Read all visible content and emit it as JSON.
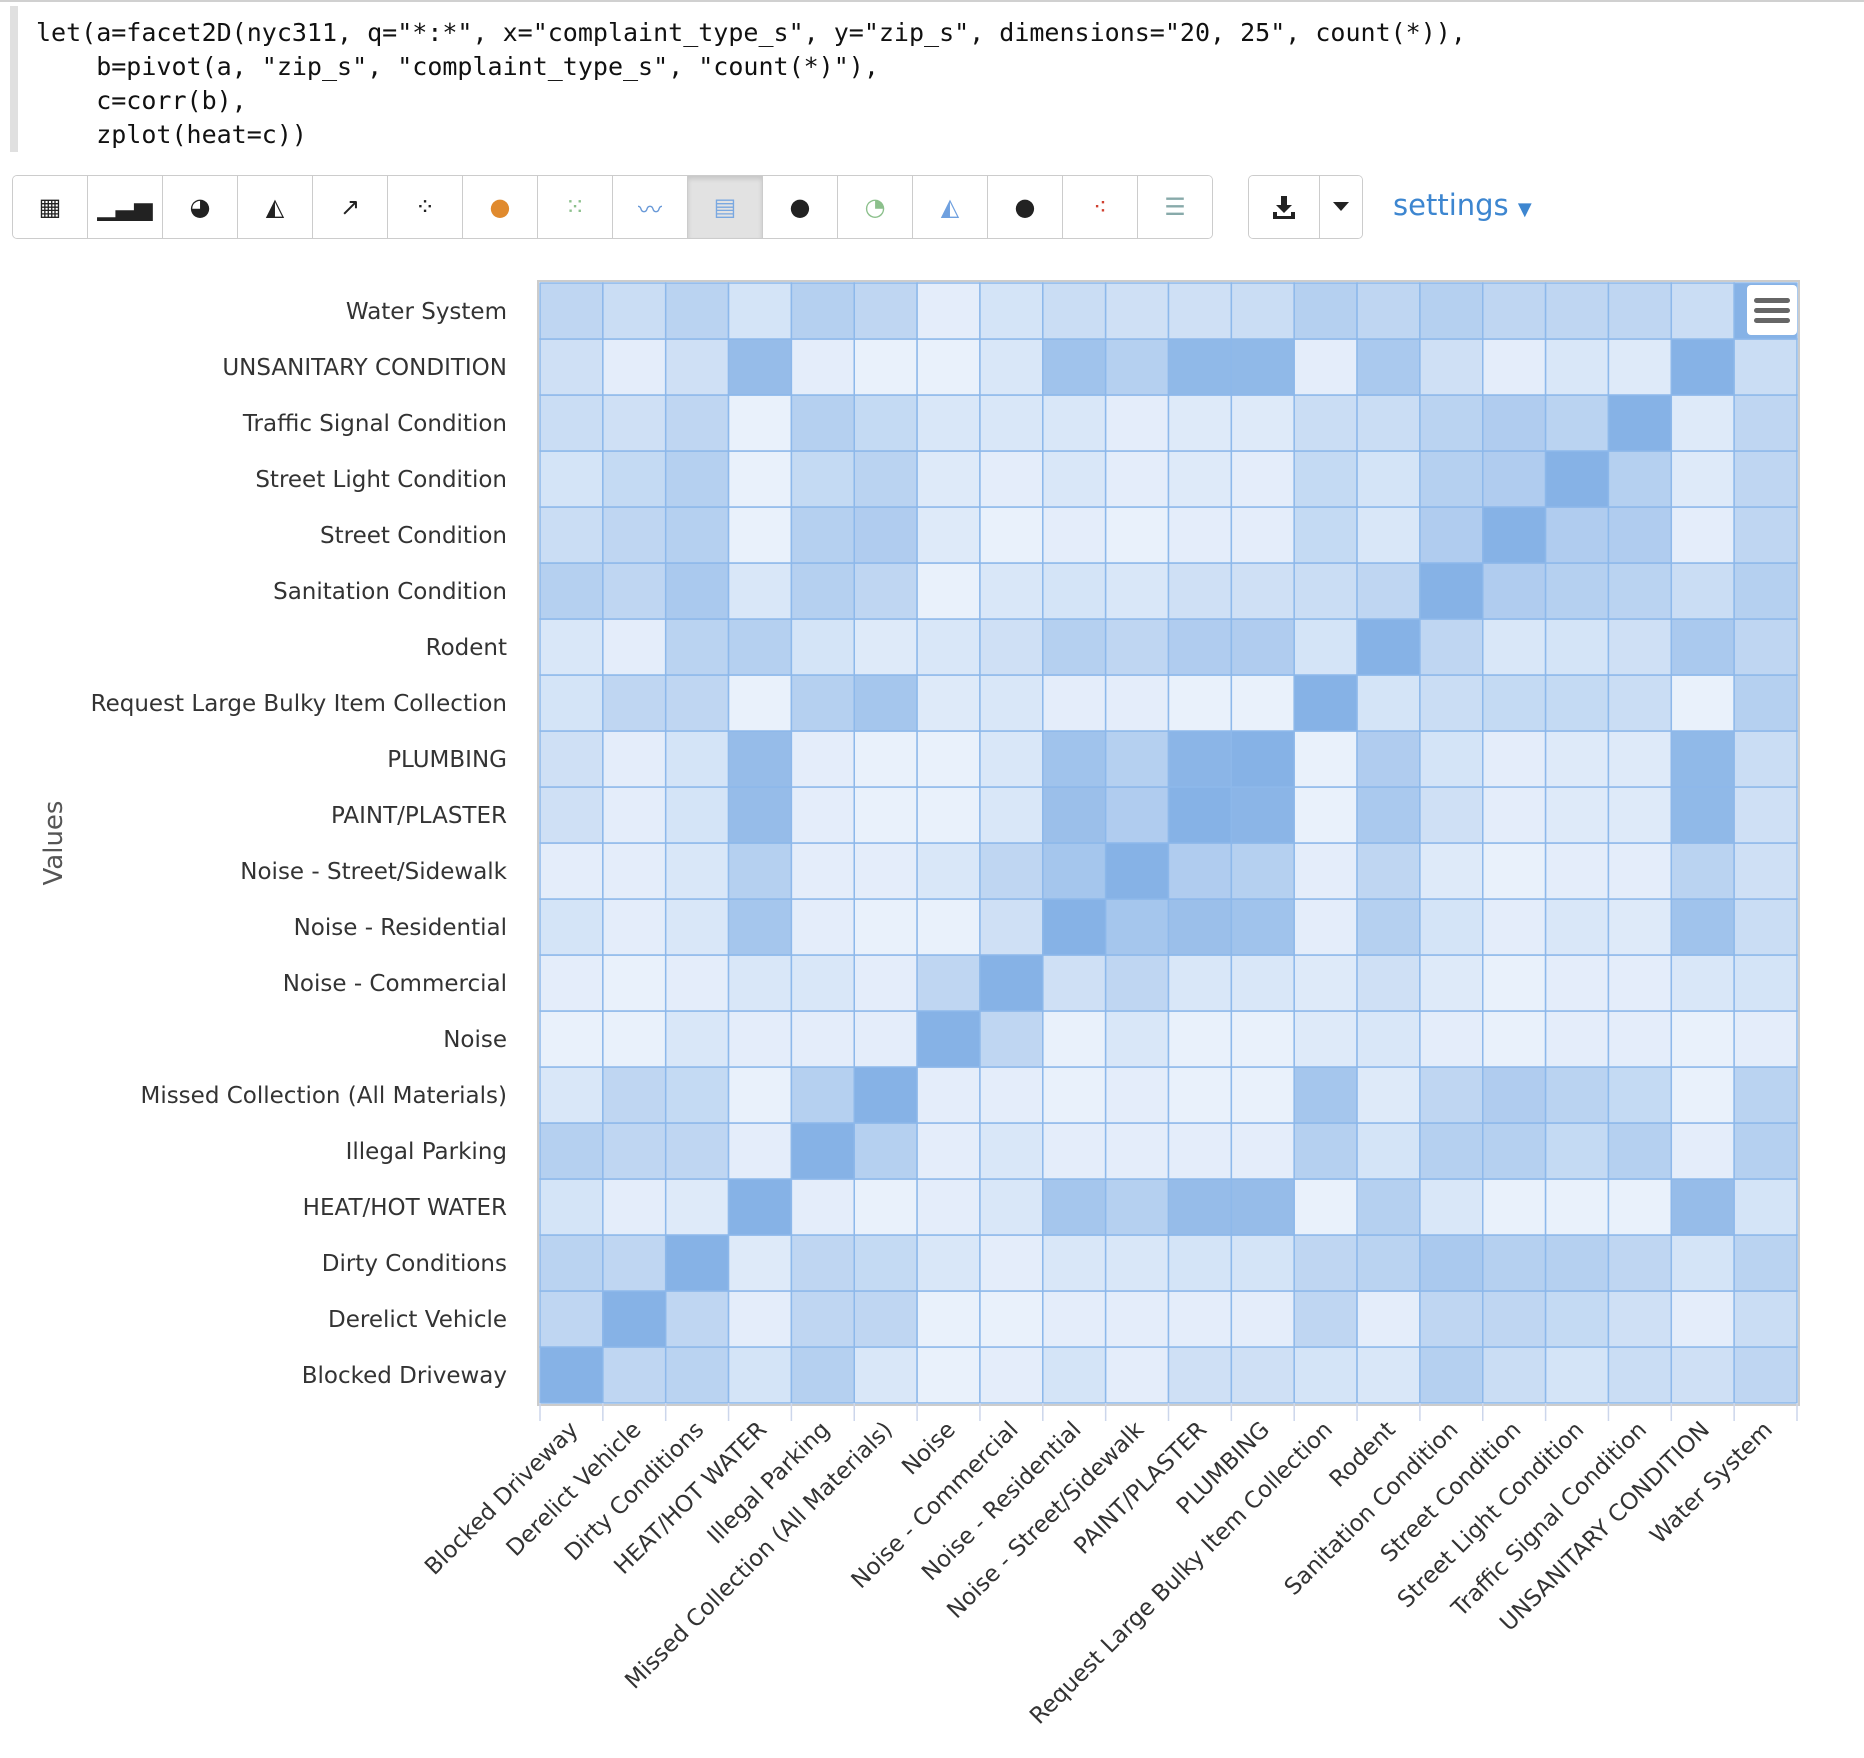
{
  "code": {
    "lines": [
      "let(a=facet2D(nyc311, q=\"*:*\", x=\"complaint_type_s\", y=\"zip_s\", dimensions=\"20, 25\", count(*)),",
      "    b=pivot(a, \"zip_s\", \"complaint_type_s\", \"count(*)\"),",
      "    c=corr(b),",
      "    zplot(heat=c))"
    ]
  },
  "toolbar": {
    "buttons": [
      "table-icon",
      "bar-chart-icon",
      "pie-chart-icon",
      "area-chart-icon",
      "line-chart-icon",
      "scatter-icon",
      "globe-orange-icon",
      "bubble-grid-icon",
      "multi-line-icon",
      "heatmap-icon",
      "globe-icon",
      "pie-color-icon",
      "area-color-icon",
      "globe-dark-icon",
      "dots-color-icon",
      "sliders-icon"
    ],
    "active_index": 9,
    "download_icon": "download-icon",
    "caret_icon": "caret-down-icon",
    "settings_label": "settings"
  },
  "colors": {
    "low": "#eef4fc",
    "high": "#86b2e6",
    "accent": "#3d86d0"
  },
  "chart_data": {
    "type": "heatmap",
    "ylabel": "Values",
    "categories": [
      "Blocked Driveway",
      "Derelict Vehicle",
      "Dirty Conditions",
      "HEAT/HOT WATER",
      "Illegal Parking",
      "Missed Collection (All Materials)",
      "Noise",
      "Noise - Commercial",
      "Noise - Residential",
      "Noise - Street/Sidewalk",
      "PAINT/PLASTER",
      "PLUMBING",
      "Request Large Bulky Item Collection",
      "Rodent",
      "Sanitation Condition",
      "Street Condition",
      "Street Light Condition",
      "Traffic Signal Condition",
      "UNSANITARY CONDITION",
      "Water System"
    ],
    "values": [
      [
        1,
        0.45,
        0.5,
        0.25,
        0.55,
        0.2,
        0.05,
        0.1,
        0.25,
        0.1,
        0.3,
        0.3,
        0.25,
        0.2,
        0.55,
        0.35,
        0.25,
        0.35,
        0.3,
        0.45
      ],
      [
        0.45,
        1,
        0.45,
        0.1,
        0.45,
        0.45,
        0.05,
        0.05,
        0.1,
        0.1,
        0.1,
        0.1,
        0.45,
        0.1,
        0.45,
        0.45,
        0.4,
        0.3,
        0.1,
        0.35
      ],
      [
        0.5,
        0.45,
        1,
        0.15,
        0.45,
        0.4,
        0.2,
        0.1,
        0.2,
        0.2,
        0.25,
        0.25,
        0.45,
        0.5,
        0.65,
        0.55,
        0.55,
        0.45,
        0.25,
        0.5
      ],
      [
        0.25,
        0.1,
        0.15,
        1,
        0.1,
        0.05,
        0.1,
        0.2,
        0.7,
        0.55,
        0.85,
        0.85,
        0.05,
        0.55,
        0.2,
        0.05,
        0.05,
        0.05,
        0.85,
        0.25
      ],
      [
        0.55,
        0.45,
        0.45,
        0.1,
        1,
        0.55,
        0.1,
        0.2,
        0.1,
        0.1,
        0.1,
        0.1,
        0.55,
        0.25,
        0.55,
        0.55,
        0.4,
        0.55,
        0.1,
        0.55
      ],
      [
        0.2,
        0.45,
        0.4,
        0.05,
        0.55,
        1,
        0.1,
        0.1,
        0.05,
        0.1,
        0.05,
        0.05,
        0.7,
        0.15,
        0.45,
        0.6,
        0.5,
        0.4,
        0.05,
        0.5
      ],
      [
        0.05,
        0.05,
        0.2,
        0.1,
        0.1,
        0.1,
        1,
        0.45,
        0.05,
        0.2,
        0.05,
        0.05,
        0.15,
        0.2,
        0.1,
        0.05,
        0.1,
        0.1,
        0.05,
        0.1
      ],
      [
        0.1,
        0.05,
        0.1,
        0.2,
        0.2,
        0.1,
        0.45,
        1,
        0.3,
        0.45,
        0.2,
        0.2,
        0.15,
        0.3,
        0.15,
        0.05,
        0.1,
        0.1,
        0.2,
        0.25
      ],
      [
        0.25,
        0.1,
        0.2,
        0.7,
        0.1,
        0.05,
        0.05,
        0.3,
        1,
        0.7,
        0.8,
        0.75,
        0.1,
        0.55,
        0.25,
        0.1,
        0.2,
        0.15,
        0.75,
        0.35
      ],
      [
        0.1,
        0.1,
        0.2,
        0.55,
        0.1,
        0.1,
        0.2,
        0.45,
        0.7,
        1,
        0.6,
        0.55,
        0.1,
        0.45,
        0.15,
        0.05,
        0.1,
        0.1,
        0.5,
        0.3
      ],
      [
        0.3,
        0.1,
        0.25,
        0.85,
        0.1,
        0.05,
        0.05,
        0.2,
        0.8,
        0.6,
        1,
        0.95,
        0.05,
        0.65,
        0.3,
        0.1,
        0.15,
        0.15,
        0.9,
        0.3
      ],
      [
        0.3,
        0.1,
        0.25,
        0.85,
        0.1,
        0.05,
        0.05,
        0.2,
        0.75,
        0.55,
        0.95,
        1,
        0.05,
        0.6,
        0.25,
        0.1,
        0.15,
        0.15,
        0.9,
        0.35
      ],
      [
        0.25,
        0.45,
        0.45,
        0.05,
        0.55,
        0.7,
        0.15,
        0.2,
        0.1,
        0.1,
        0.05,
        0.05,
        1,
        0.25,
        0.35,
        0.4,
        0.4,
        0.35,
        0.05,
        0.55
      ],
      [
        0.2,
        0.1,
        0.5,
        0.55,
        0.25,
        0.15,
        0.2,
        0.3,
        0.55,
        0.45,
        0.6,
        0.6,
        0.25,
        1,
        0.45,
        0.2,
        0.25,
        0.3,
        0.65,
        0.45
      ],
      [
        0.55,
        0.45,
        0.65,
        0.2,
        0.55,
        0.45,
        0.05,
        0.2,
        0.25,
        0.2,
        0.3,
        0.3,
        0.35,
        0.45,
        1,
        0.6,
        0.55,
        0.5,
        0.35,
        0.55
      ],
      [
        0.35,
        0.45,
        0.55,
        0.05,
        0.55,
        0.6,
        0.15,
        0.05,
        0.1,
        0.05,
        0.1,
        0.1,
        0.4,
        0.2,
        0.6,
        1,
        0.6,
        0.6,
        0.1,
        0.45
      ],
      [
        0.25,
        0.4,
        0.55,
        0.05,
        0.4,
        0.5,
        0.15,
        0.1,
        0.2,
        0.1,
        0.15,
        0.1,
        0.4,
        0.25,
        0.55,
        0.6,
        1,
        0.55,
        0.15,
        0.45
      ],
      [
        0.35,
        0.3,
        0.45,
        0.05,
        0.55,
        0.4,
        0.2,
        0.2,
        0.2,
        0.1,
        0.15,
        0.15,
        0.35,
        0.35,
        0.5,
        0.6,
        0.5,
        1,
        0.15,
        0.45
      ],
      [
        0.3,
        0.1,
        0.3,
        0.85,
        0.1,
        0.05,
        0.05,
        0.2,
        0.75,
        0.55,
        0.9,
        0.9,
        0.1,
        0.65,
        0.3,
        0.1,
        0.2,
        0.15,
        1,
        0.35
      ],
      [
        0.45,
        0.35,
        0.5,
        0.25,
        0.55,
        0.45,
        0.1,
        0.25,
        0.35,
        0.3,
        0.3,
        0.35,
        0.55,
        0.45,
        0.55,
        0.45,
        0.45,
        0.45,
        0.35,
        1
      ]
    ],
    "menu_icon": "hamburger-menu-icon",
    "grid": true
  }
}
